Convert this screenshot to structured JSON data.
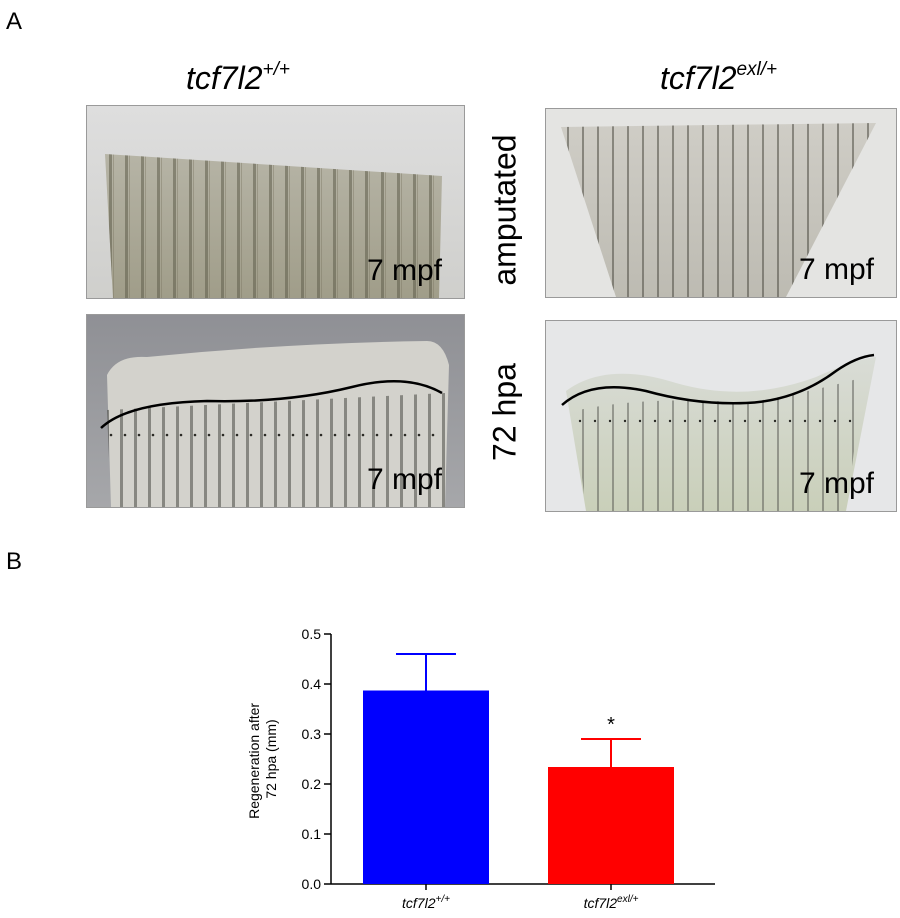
{
  "panel_a": {
    "letter": "A",
    "genotype_left": {
      "base": "tcf7l2",
      "sup": "+/+"
    },
    "genotype_right": {
      "base": "tcf7l2",
      "sup": "exl/+"
    },
    "row_top_label": "amputated",
    "row_bottom_label": "72 hpa",
    "photo_stamp": "7 mpf"
  },
  "panel_b": {
    "letter": "B"
  },
  "chart_data": {
    "type": "bar",
    "categories": [
      {
        "base": "tcf7l2",
        "sup": "+/+"
      },
      {
        "base": "tcf7l2",
        "sup": "exl/+"
      }
    ],
    "values": [
      0.387,
      0.234
    ],
    "errors": [
      0.073,
      0.056
    ],
    "colors": [
      "#0000ff",
      "#ff0000"
    ],
    "significance": [
      "",
      "*"
    ],
    "ylabel_lines": [
      "Regeneration after",
      "72 hpa (mm)"
    ],
    "ylim": [
      0,
      0.5
    ],
    "yticks": [
      "0.0",
      "0.1",
      "0.2",
      "0.3",
      "0.4",
      "0.5"
    ],
    "grid": false
  }
}
